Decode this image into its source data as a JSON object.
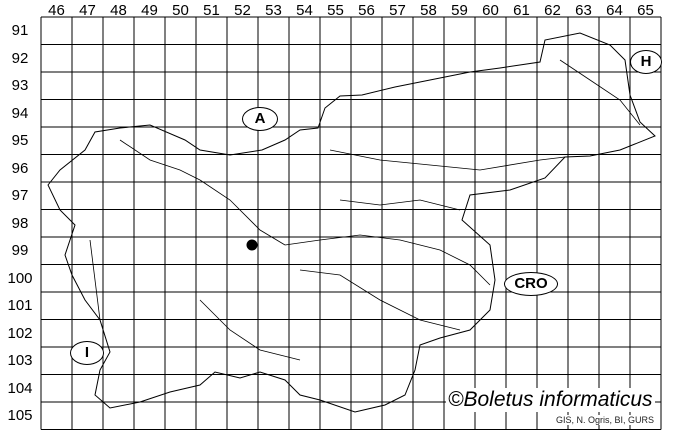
{
  "map": {
    "column_labels": [
      "46",
      "47",
      "48",
      "49",
      "50",
      "51",
      "52",
      "53",
      "54",
      "55",
      "56",
      "57",
      "58",
      "59",
      "60",
      "61",
      "62",
      "63",
      "64",
      "65"
    ],
    "row_labels": [
      "91",
      "92",
      "93",
      "94",
      "95",
      "96",
      "97",
      "98",
      "99",
      "100",
      "101",
      "102",
      "103",
      "104",
      "105"
    ],
    "country_labels": {
      "austria": "A",
      "hungary": "H",
      "croatia": "CRO",
      "italy": "I"
    },
    "records": [
      {
        "column": "52",
        "row": "99"
      }
    ],
    "credit": "©Boletus informaticus",
    "source": "GIS, N. Ogris, BI, GURS",
    "colors": {
      "lines": "#000000",
      "background": "#ffffff",
      "record": "#000000"
    }
  }
}
